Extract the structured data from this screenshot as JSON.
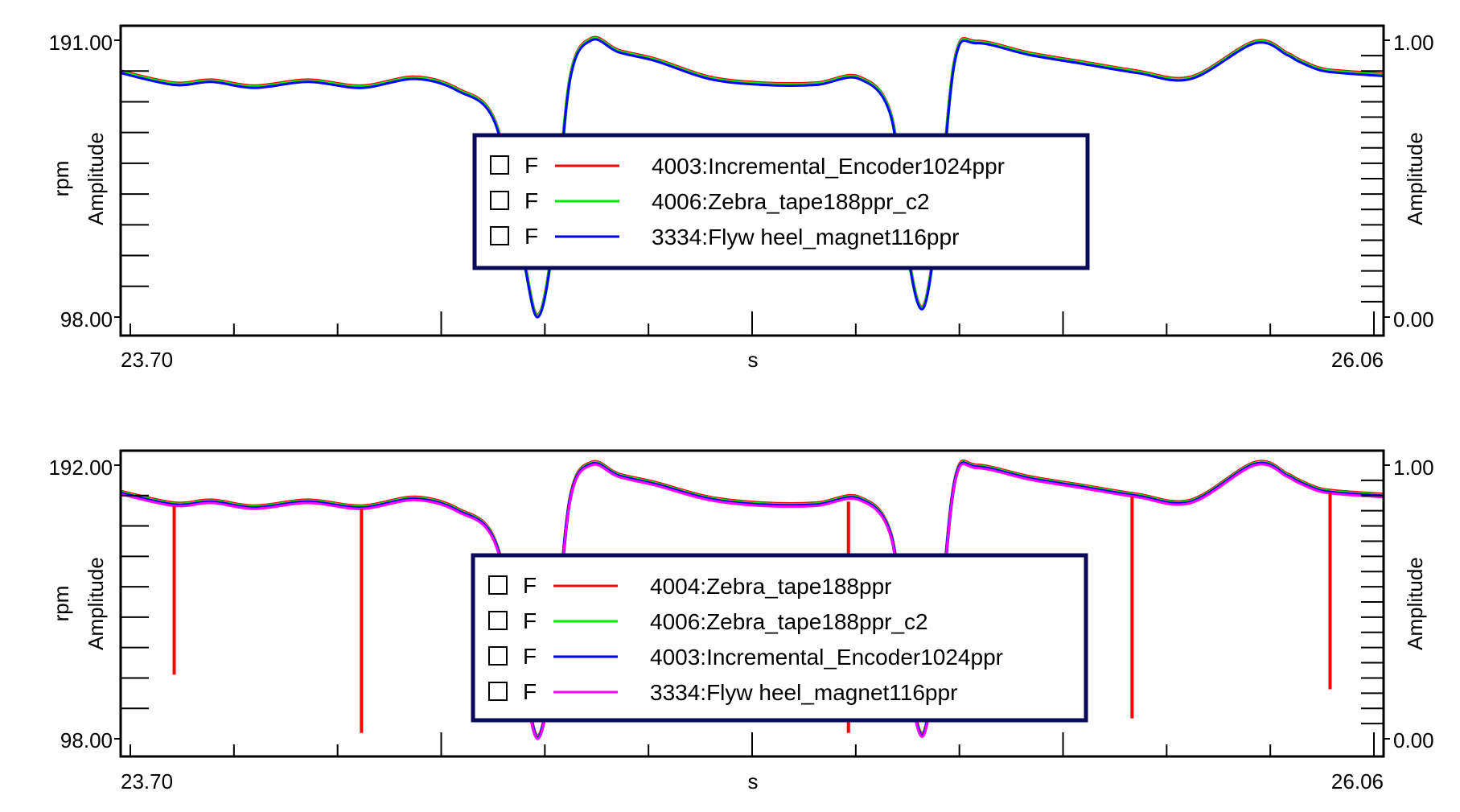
{
  "chart_data": [
    {
      "type": "line",
      "xlabel": "s",
      "ylabel_left_outer": "rpm",
      "ylabel_left_inner": "Amplitude",
      "ylabel_right": "Amplitude",
      "xlim": [
        23.7,
        26.06
      ],
      "x_tick_labels": [
        "23.70",
        "26.06"
      ],
      "ylim_left": [
        98.0,
        191.0
      ],
      "y_tick_labels_left": [
        "191.00",
        "98.00"
      ],
      "ylim_right": [
        0.0,
        1.0
      ],
      "y_tick_labels_right": [
        "1.00",
        "0.00"
      ],
      "legend_placement": "center",
      "series": [
        {
          "checkbox": "F",
          "name": "4003:Incremental_Encoder1024ppr",
          "color": "#ff0000"
        },
        {
          "checkbox": "F",
          "name": "4006:Zebra_tape188ppr_c2",
          "color": "#00ee00"
        },
        {
          "checkbox": "F",
          "name": "3334:Flyw heel_magnet116ppr",
          "color": "#0000ff"
        }
      ],
      "x": [
        23.7,
        23.8,
        23.87,
        23.95,
        24.05,
        24.15,
        24.25,
        24.33,
        24.4,
        24.45,
        24.48,
        24.51,
        24.54,
        24.58,
        24.63,
        24.7,
        24.8,
        24.9,
        25.0,
        25.08,
        25.14,
        25.17,
        25.2,
        25.23,
        25.26,
        25.3,
        25.4,
        25.5,
        25.6,
        25.7,
        25.82,
        25.88,
        25.9,
        25.94,
        25.98,
        26.06
      ],
      "values": [
        180,
        176,
        177,
        175,
        177,
        175,
        178,
        174,
        163,
        120,
        98,
        125,
        178,
        191,
        187,
        184,
        178,
        176,
        176,
        178,
        165,
        120,
        101,
        135,
        185,
        190,
        186,
        183,
        180,
        178,
        190,
        186,
        184,
        181,
        180,
        179
      ]
    },
    {
      "type": "line",
      "xlabel": "s",
      "ylabel_left_outer": "rpm",
      "ylabel_left_inner": "Amplitude",
      "ylabel_right": "Amplitude",
      "xlim": [
        23.7,
        26.06
      ],
      "x_tick_labels": [
        "23.70",
        "26.06"
      ],
      "ylim_left": [
        98.0,
        192.0
      ],
      "y_tick_labels_left": [
        "192.00",
        "98.00"
      ],
      "ylim_right": [
        0.0,
        1.0
      ],
      "y_tick_labels_right": [
        "1.00",
        "0.00"
      ],
      "legend_placement": "center",
      "series": [
        {
          "checkbox": "F",
          "name": "4004:Zebra_tape188ppr",
          "color": "#ff0000"
        },
        {
          "checkbox": "F",
          "name": "4006:Zebra_tape188ppr_c2",
          "color": "#00ee00"
        },
        {
          "checkbox": "F",
          "name": "4003:Incremental_Encoder1024ppr",
          "color": "#0000ff"
        },
        {
          "checkbox": "F",
          "name": "3334:Flyw heel_magnet116ppr",
          "color": "#ff00ff"
        }
      ],
      "x": [
        23.7,
        23.8,
        23.87,
        23.95,
        24.05,
        24.15,
        24.25,
        24.33,
        24.4,
        24.45,
        24.48,
        24.51,
        24.54,
        24.58,
        24.63,
        24.7,
        24.8,
        24.9,
        25.0,
        25.08,
        25.14,
        25.17,
        25.2,
        25.23,
        25.26,
        25.3,
        25.4,
        25.5,
        25.6,
        25.7,
        25.82,
        25.88,
        25.9,
        25.94,
        25.98,
        26.06
      ],
      "values": [
        182,
        178,
        179,
        177,
        179,
        177,
        180,
        176,
        165,
        122,
        98,
        127,
        180,
        192,
        188,
        185,
        180,
        178,
        178,
        180,
        167,
        122,
        99,
        137,
        187,
        191,
        187,
        184,
        181,
        179,
        192,
        188,
        186,
        183,
        182,
        181
      ],
      "dropout_spikes": [
        {
          "x": 23.8,
          "min": 120
        },
        {
          "x": 24.15,
          "min": 100
        },
        {
          "x": 24.44,
          "min": 140
        },
        {
          "x": 25.06,
          "min": 100
        },
        {
          "x": 25.24,
          "min": 150
        },
        {
          "x": 25.59,
          "min": 105
        },
        {
          "x": 25.96,
          "min": 115
        }
      ]
    }
  ]
}
